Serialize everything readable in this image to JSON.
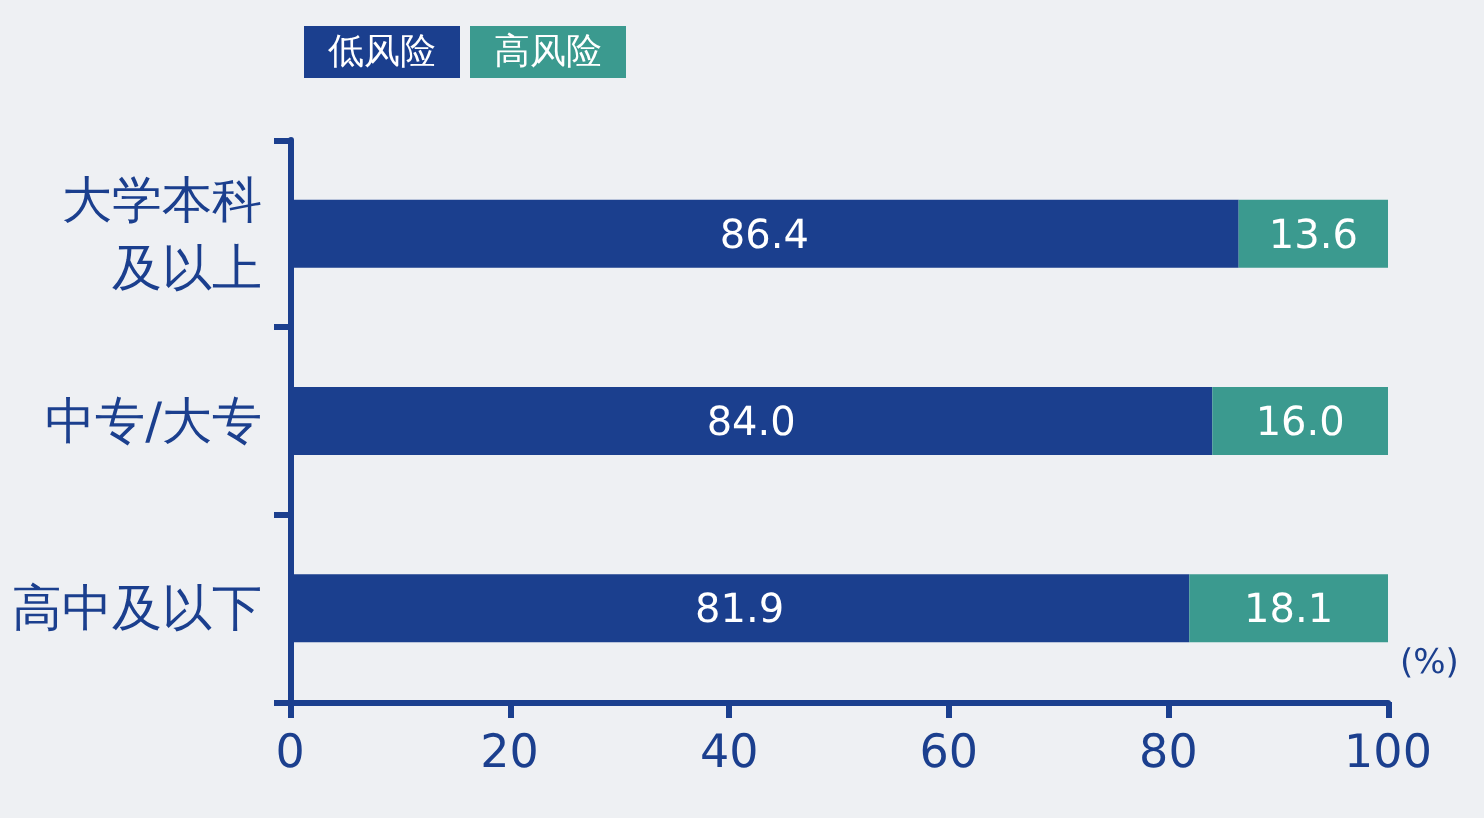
{
  "chart_data": {
    "type": "bar",
    "orientation": "horizontal",
    "stacked": true,
    "categories": [
      "大学本科及以上",
      "中专/大专",
      "高中及以下"
    ],
    "series": [
      {
        "name": "低风险",
        "color": "#1b3f8e",
        "values": [
          86.4,
          84.0,
          81.9
        ]
      },
      {
        "name": "高风险",
        "color": "#3b9a8f",
        "values": [
          13.6,
          16.0,
          18.1
        ]
      }
    ],
    "value_labels": [
      [
        "86.4",
        "84.0",
        "81.9"
      ],
      [
        "13.6",
        "16.0",
        "18.1"
      ]
    ],
    "xlim": [
      0,
      100
    ],
    "xticks": [
      0,
      20,
      40,
      60,
      80,
      100
    ],
    "xlabel": "(%)",
    "legend": "top left",
    "grid": false
  }
}
